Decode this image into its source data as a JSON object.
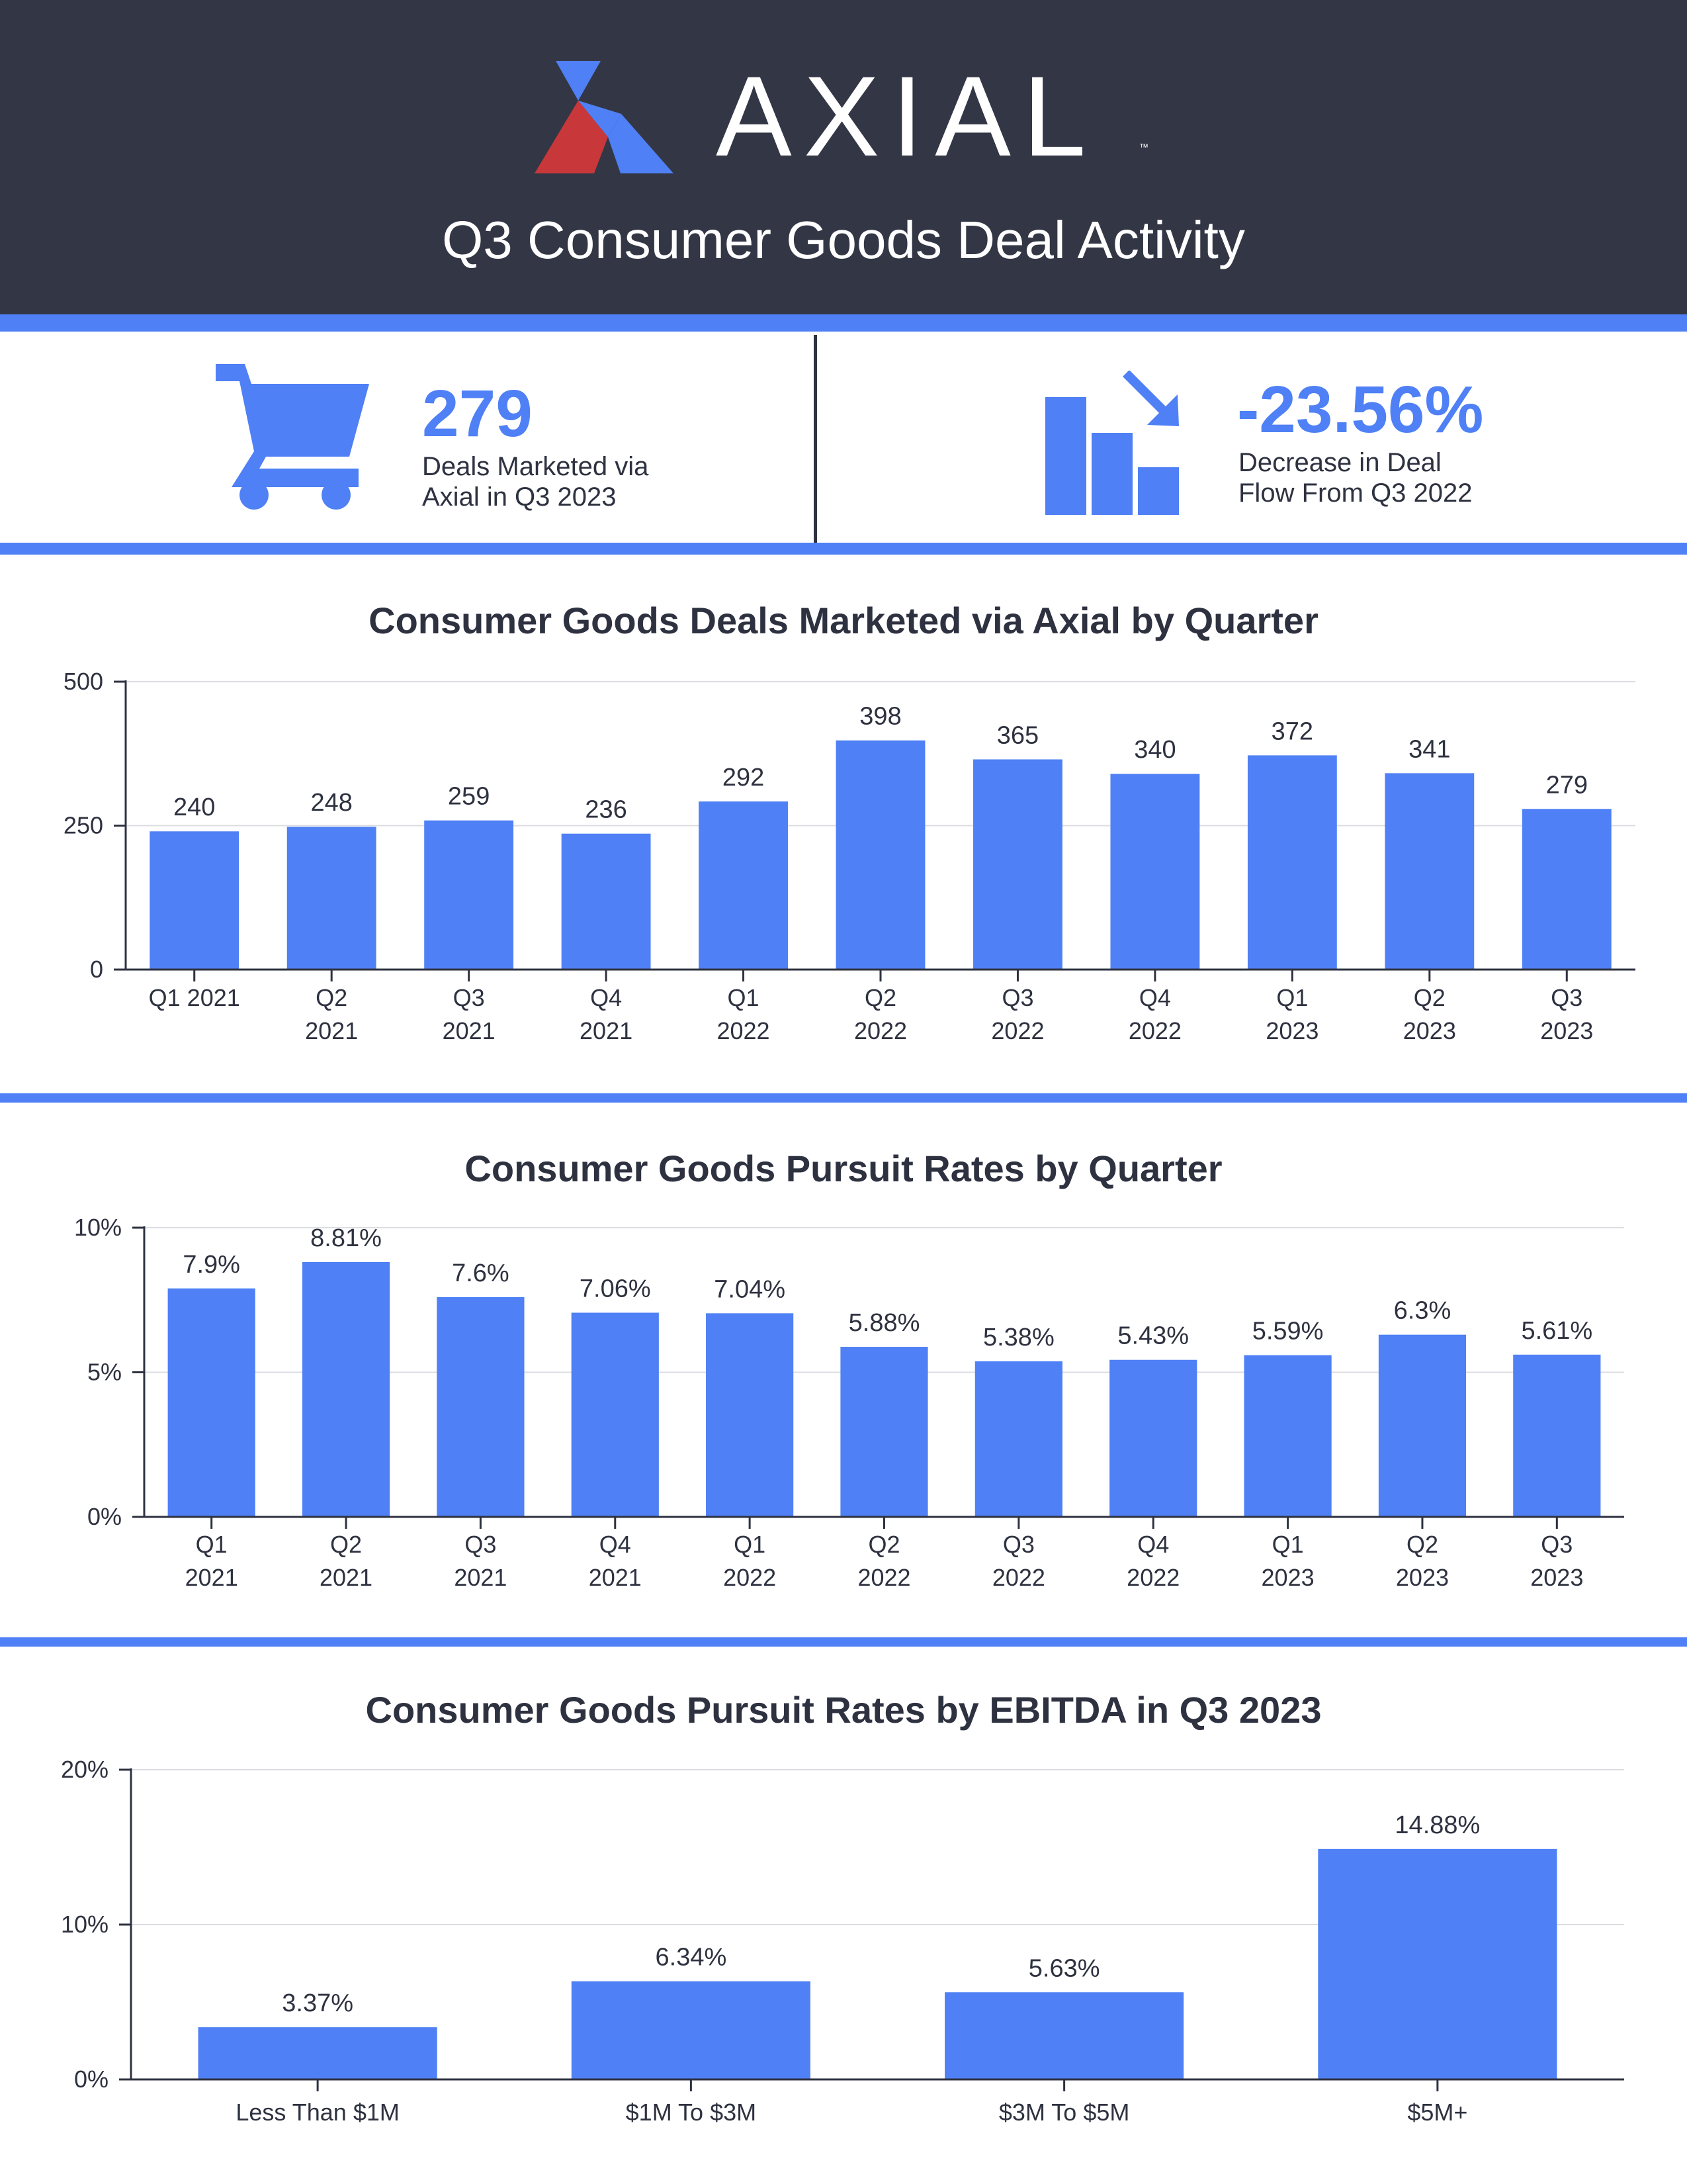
{
  "brand": {
    "name": "AXIAL",
    "trademark": "™",
    "colors": {
      "blue": "#4f80f5",
      "red": "#c8383a",
      "dark": "#333645"
    }
  },
  "header": {
    "title": "Q3 Consumer Goods Deal Activity"
  },
  "kpis": [
    {
      "icon": "shopping-cart-icon",
      "value": "279",
      "label_line1": "Deals Marketed via",
      "label_line2": "Axial in Q3 2023"
    },
    {
      "icon": "declining-bars-icon",
      "value": "-23.56%",
      "label_line1": "Decrease in Deal",
      "label_line2": "Flow From Q3 2022"
    }
  ],
  "chart_data": [
    {
      "type": "bar",
      "title": "Consumer Goods Deals Marketed via Axial by Quarter",
      "categories": [
        [
          "Q1 2021"
        ],
        [
          "Q2",
          "2021"
        ],
        [
          "Q3",
          "2021"
        ],
        [
          "Q4",
          "2021"
        ],
        [
          "Q1",
          "2022"
        ],
        [
          "Q2",
          "2022"
        ],
        [
          "Q3",
          "2022"
        ],
        [
          "Q4",
          "2022"
        ],
        [
          "Q1",
          "2023"
        ],
        [
          "Q2",
          "2023"
        ],
        [
          "Q3",
          "2023"
        ]
      ],
      "values": [
        240,
        248,
        259,
        236,
        292,
        398,
        365,
        340,
        372,
        341,
        279
      ],
      "labels": [
        "240",
        "248",
        "259",
        "236",
        "292",
        "398",
        "365",
        "340",
        "372",
        "341",
        "279"
      ],
      "ylim": [
        0,
        500
      ],
      "yticks": [
        0,
        250,
        500
      ],
      "ytick_labels": [
        "0",
        "250",
        "500"
      ],
      "grid": true
    },
    {
      "type": "bar",
      "title": "Consumer Goods Pursuit Rates by Quarter",
      "categories": [
        [
          "Q1",
          "2021"
        ],
        [
          "Q2",
          "2021"
        ],
        [
          "Q3",
          "2021"
        ],
        [
          "Q4",
          "2021"
        ],
        [
          "Q1",
          "2022"
        ],
        [
          "Q2",
          "2022"
        ],
        [
          "Q3",
          "2022"
        ],
        [
          "Q4",
          "2022"
        ],
        [
          "Q1",
          "2023"
        ],
        [
          "Q2",
          "2023"
        ],
        [
          "Q3",
          "2023"
        ]
      ],
      "values": [
        7.9,
        8.81,
        7.6,
        7.06,
        7.04,
        5.88,
        5.38,
        5.43,
        5.59,
        6.3,
        5.61
      ],
      "labels": [
        "7.9%",
        "8.81%",
        "7.6%",
        "7.06%",
        "7.04%",
        "5.88%",
        "5.38%",
        "5.43%",
        "5.59%",
        "6.3%",
        "5.61%"
      ],
      "ylim": [
        0,
        10
      ],
      "yticks": [
        0,
        5,
        10
      ],
      "ytick_labels": [
        "0%",
        "5%",
        "10%"
      ],
      "grid": true
    },
    {
      "type": "bar",
      "title": "Consumer Goods Pursuit Rates by EBITDA in Q3 2023",
      "categories": [
        [
          "Less Than $1M"
        ],
        [
          "$1M To $3M"
        ],
        [
          "$3M To $5M"
        ],
        [
          "$5M+"
        ]
      ],
      "values": [
        3.37,
        6.34,
        5.63,
        14.88
      ],
      "labels": [
        "3.37%",
        "6.34%",
        "5.63%",
        "14.88%"
      ],
      "ylim": [
        0,
        20
      ],
      "yticks": [
        0,
        10,
        20
      ],
      "ytick_labels": [
        "0%",
        "10%",
        "20%"
      ],
      "grid": true
    }
  ]
}
